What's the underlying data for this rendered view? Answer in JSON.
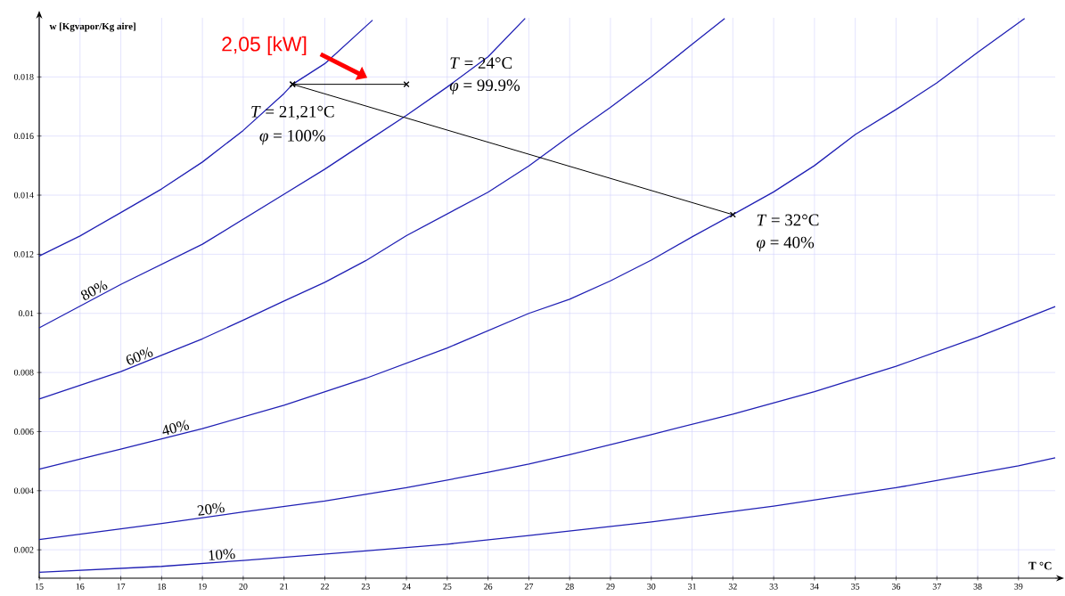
{
  "chart_data": {
    "type": "line",
    "xlabel": "T °C",
    "ylabel": "w [Kgvapor/Kg aire]",
    "xlim": [
      15,
      39.9
    ],
    "ylim": [
      0.00104,
      0.02
    ],
    "xticks": [
      15,
      16,
      17,
      18,
      19,
      20,
      21,
      22,
      23,
      24,
      25,
      26,
      27,
      28,
      29,
      30,
      31,
      32,
      33,
      34,
      35,
      36,
      37,
      38,
      39
    ],
    "yticks": [
      0.002,
      0.004,
      0.006,
      0.008,
      0.01,
      0.012,
      0.014,
      0.016,
      0.018
    ],
    "grid": true,
    "marker": "none",
    "series": [
      {
        "color": "#1f1fb4",
        "x": [
          15,
          16,
          17,
          18,
          19,
          20,
          21,
          21.21,
          22,
          23.17
        ],
        "values": [
          0.01194,
          0.01262,
          0.01341,
          0.01421,
          0.01512,
          0.01619,
          0.01744,
          0.01775,
          0.01845,
          0.01992
        ]
      },
      {
        "name": "80%",
        "color": "#1f1fb4",
        "x": [
          15,
          17,
          19,
          21,
          22,
          23,
          24,
          25,
          26,
          26.91
        ],
        "values": [
          0.00951,
          0.01098,
          0.01234,
          0.01403,
          0.01488,
          0.01579,
          0.0167,
          0.01766,
          0.01868,
          0.01998
        ]
      },
      {
        "name": "60%",
        "color": "#1f1fb4",
        "x": [
          15,
          17,
          19,
          20,
          21,
          22,
          23,
          24,
          26,
          27,
          28,
          29,
          30,
          31,
          31.8
        ],
        "values": [
          0.0071,
          0.00803,
          0.00914,
          0.00977,
          0.01042,
          0.01105,
          0.01178,
          0.01263,
          0.0141,
          0.01499,
          0.016,
          0.01697,
          0.018,
          0.0191,
          0.01998
        ]
      },
      {
        "name": "40%",
        "color": "#1f1fb4",
        "x": [
          15,
          17,
          19,
          21,
          23,
          25,
          27,
          28,
          29,
          30,
          31,
          32,
          33,
          34,
          35,
          36,
          37,
          38,
          39.15
        ],
        "values": [
          0.00473,
          0.00541,
          0.0061,
          0.00689,
          0.0078,
          0.00883,
          0.01,
          0.01048,
          0.0111,
          0.0118,
          0.01259,
          0.01334,
          0.01411,
          0.015,
          0.01605,
          0.0169,
          0.0178,
          0.01883,
          0.01998
        ]
      },
      {
        "name": "20%",
        "color": "#1f1fb4",
        "x": [
          15,
          18,
          20,
          22,
          24,
          26,
          27,
          28,
          30,
          32,
          34,
          36,
          38,
          39.9
        ],
        "values": [
          0.00235,
          0.00289,
          0.00328,
          0.00365,
          0.0041,
          0.00462,
          0.0049,
          0.00522,
          0.0059,
          0.00659,
          0.00735,
          0.00821,
          0.0092,
          0.01023
        ]
      },
      {
        "name": "10%",
        "color": "#1f1fb4",
        "x": [
          15,
          18,
          20,
          23,
          25,
          27,
          30,
          33,
          36,
          39,
          39.9
        ],
        "values": [
          0.00124,
          0.00144,
          0.00164,
          0.00196,
          0.00219,
          0.00248,
          0.00294,
          0.00348,
          0.0041,
          0.00484,
          0.00511
        ]
      },
      {
        "color": "#000000",
        "marker": "cross",
        "x": [
          21.21,
          24
        ],
        "values": [
          0.01775,
          0.01775
        ]
      },
      {
        "color": "#000000",
        "marker": "cross",
        "x": [
          21.21,
          32
        ],
        "values": [
          0.01775,
          0.01334
        ]
      }
    ],
    "annotations": [
      "2,05 [kW]",
      {
        "text": "*T* = 21,21°C",
        "x": 21.21,
        "y": 0.01775
      },
      {
        "text": "*φ*  = 100%",
        "x": 21.21,
        "y": 0.01775
      },
      {
        "text": "*T* = 24°C",
        "x": 24,
        "y": 0.01775
      },
      {
        "text": "*φ*  = 99.9%",
        "x": 24,
        "y": 0.01775
      },
      {
        "text": "*T* = 32°C",
        "x": 32,
        "y": 0.01334
      },
      {
        "text": "*φ*  = 40%",
        "x": 32,
        "y": 0.01334
      }
    ]
  }
}
